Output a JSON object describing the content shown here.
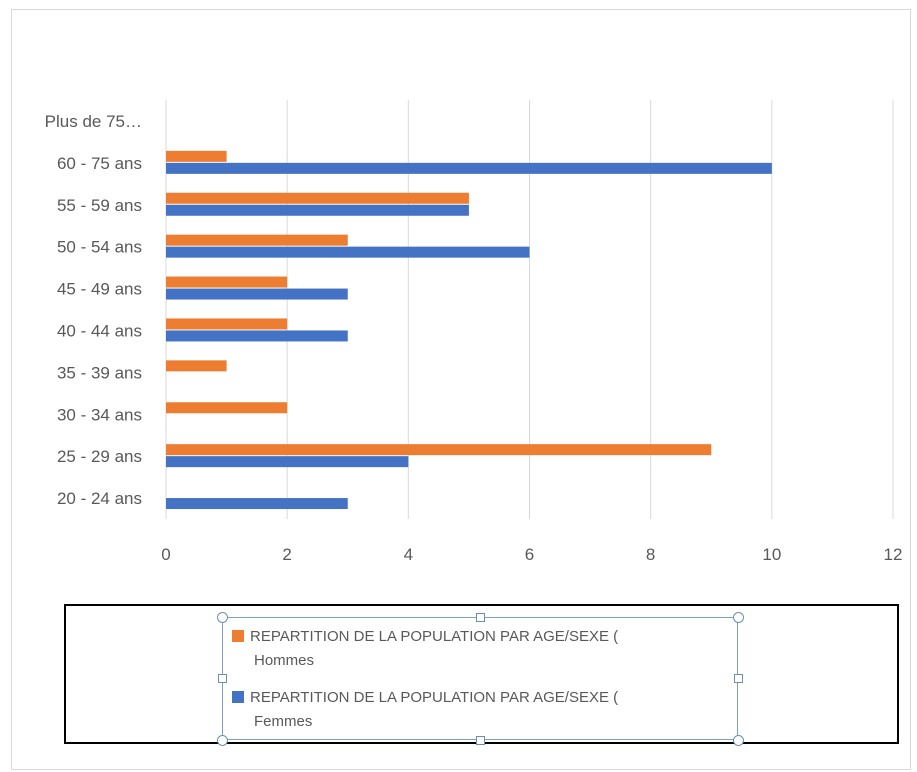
{
  "chart_data": {
    "type": "bar",
    "orientation": "horizontal",
    "categories": [
      "20 - 24 ans",
      "25 - 29 ans",
      "30 - 34 ans",
      "35 - 39 ans",
      "40 - 44 ans",
      "45 - 49 ans",
      "50 - 54 ans",
      "55 - 59 ans",
      "60 - 75 ans",
      "Plus de 75…"
    ],
    "series": [
      {
        "name": "REPARTITION DE LA POPULATION PAR AGE/SEXE (",
        "name_line2": "Hommes",
        "color": "#ed7d31",
        "values": [
          null,
          9,
          2,
          1,
          2,
          2,
          3,
          5,
          1,
          null
        ]
      },
      {
        "name": "REPARTITION DE LA POPULATION PAR AGE/SEXE (",
        "name_line2": "Femmes",
        "color": "#4472c4",
        "values": [
          3,
          4,
          null,
          null,
          3,
          3,
          6,
          5,
          10,
          null
        ]
      }
    ],
    "xlim": [
      0,
      12
    ],
    "x_ticks": [
      "0",
      "2",
      "4",
      "6",
      "8",
      "10",
      "12"
    ],
    "grid": true,
    "legend_position": "bottom",
    "title": "",
    "xlabel": "",
    "ylabel": ""
  }
}
